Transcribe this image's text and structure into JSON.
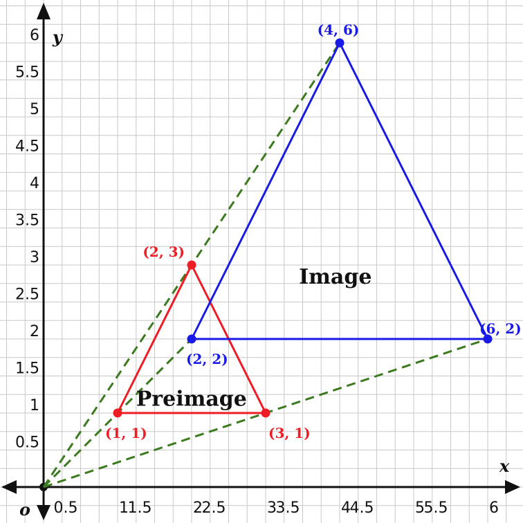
{
  "colors": {
    "grid": "#c8c8c8",
    "axis": "#111111",
    "preimage": "#ee1c25",
    "image": "#1a1ae6",
    "projection": "#3b7a1e"
  },
  "chart_data": {
    "type": "scatter",
    "title": "",
    "xlabel": "x",
    "ylabel": "y",
    "origin_label": "o",
    "xlim": [
      0,
      6
    ],
    "ylim": [
      0,
      6
    ],
    "grid": true,
    "x_ticks": [
      "0.5",
      "1",
      "1.5",
      "2",
      "2.5",
      "3",
      "3.5",
      "4",
      "4.5",
      "5",
      "5.5",
      "6"
    ],
    "y_ticks": [
      "0.5",
      "1",
      "1.5",
      "2",
      "2.5",
      "3",
      "3.5",
      "4",
      "4.5",
      "5",
      "5.5",
      "6"
    ],
    "dilation_center": [
      0,
      0
    ],
    "series": [
      {
        "name": "Preimage",
        "color": "#ee1c25",
        "points": [
          {
            "x": 1,
            "y": 1,
            "label": "(1, 1)"
          },
          {
            "x": 2,
            "y": 3,
            "label": "(2, 3)"
          },
          {
            "x": 3,
            "y": 1,
            "label": "(3, 1)"
          }
        ]
      },
      {
        "name": "Image",
        "color": "#1a1ae6",
        "points": [
          {
            "x": 2,
            "y": 2,
            "label": "(2, 2)"
          },
          {
            "x": 4,
            "y": 6,
            "label": "(4, 6)"
          },
          {
            "x": 6,
            "y": 2,
            "label": "(6, 2)"
          }
        ]
      }
    ]
  }
}
